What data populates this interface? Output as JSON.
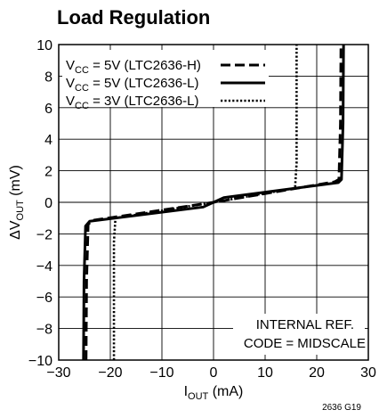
{
  "chart_data": {
    "type": "line",
    "title": "Load Regulation",
    "xlabel": {
      "main": "I",
      "sub": "OUT",
      "rest": " (mA)"
    },
    "ylabel": {
      "pre": "ΔV",
      "sub": "OUT",
      "rest": " (mV)"
    },
    "xlim": [
      -30,
      30
    ],
    "ylim": [
      -10,
      10
    ],
    "xticks": [
      -30,
      -20,
      -10,
      0,
      10,
      20,
      30
    ],
    "xtick_labels": [
      "−30",
      "−20",
      "−10",
      "0",
      "10",
      "20",
      "30"
    ],
    "yticks": [
      -10,
      -8,
      -6,
      -4,
      -2,
      0,
      2,
      4,
      6,
      8,
      10
    ],
    "ytick_labels": [
      "−10",
      "−8",
      "−6",
      "−4",
      "−2",
      "0",
      "2",
      "4",
      "6",
      "8",
      "10"
    ],
    "grid": true,
    "legend_position": "top-left",
    "series": [
      {
        "name": {
          "pre": "V",
          "sub": "CC",
          "rest": " = 5V (LTC2636-H)"
        },
        "style": "dashed",
        "x": [
          -24.7,
          -24.6,
          -24.3,
          -23.5,
          0,
          23.5,
          24.3,
          24.6,
          24.7
        ],
        "y": [
          -10,
          -5,
          -1.4,
          -1.15,
          0,
          1.3,
          1.45,
          5,
          10
        ]
      },
      {
        "name": {
          "pre": "V",
          "sub": "CC",
          "rest": " = 5V (LTC2636-L)"
        },
        "style": "solid",
        "x": [
          -25.2,
          -25.1,
          -24.8,
          -24.0,
          -2.0,
          0,
          2.0,
          24.2,
          24.8,
          25.1,
          25.2
        ],
        "y": [
          -10,
          -5,
          -1.5,
          -1.2,
          -0.3,
          0,
          0.3,
          1.25,
          1.45,
          5,
          10
        ]
      },
      {
        "name": {
          "pre": "V",
          "sub": "CC",
          "rest": " = 3V (LTC2636-L)"
        },
        "style": "dotted",
        "x": [
          -19.3,
          -19.3,
          -19.0,
          0,
          15.8,
          16.1,
          16.1
        ],
        "y": [
          -10,
          -2.5,
          -1.0,
          0,
          0.9,
          2.5,
          10
        ]
      }
    ],
    "annotations": [
      "INTERNAL REF.",
      "CODE = MIDSCALE"
    ],
    "figure_id": "2636 G19"
  }
}
